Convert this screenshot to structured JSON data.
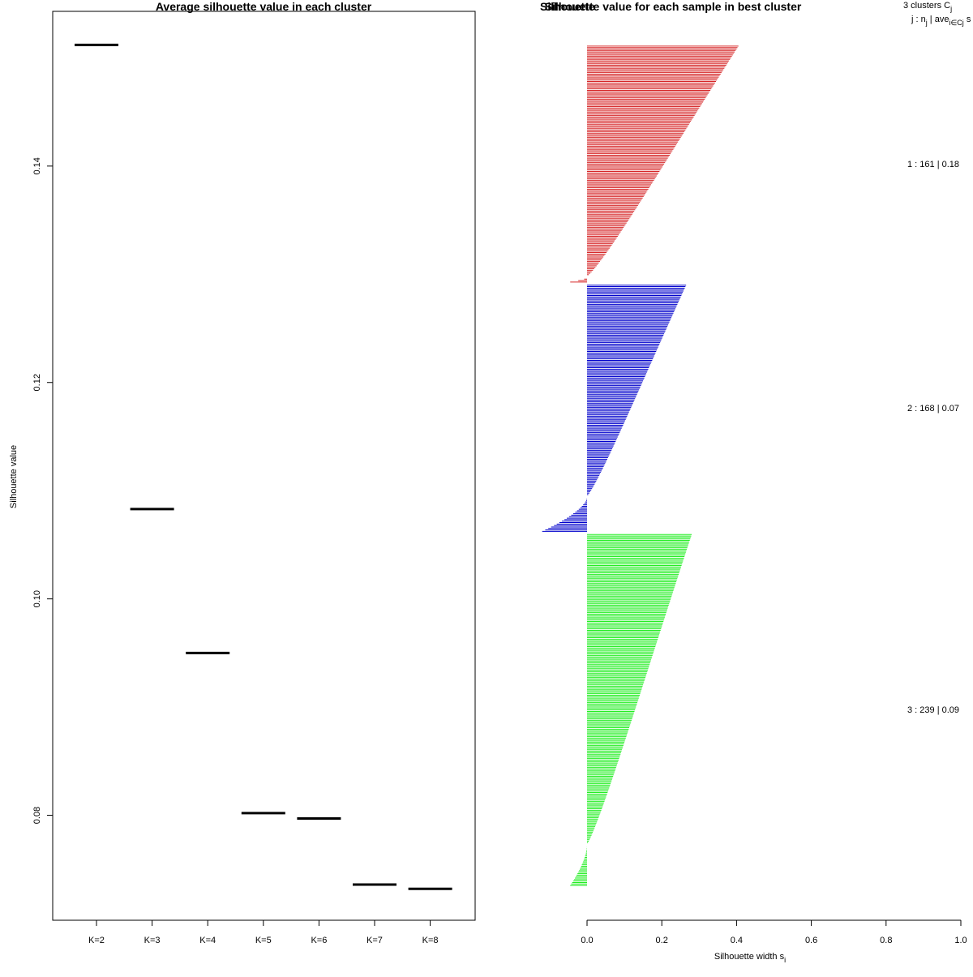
{
  "chart_data": [
    {
      "type": "line",
      "title": "Average silhouette value in each cluster",
      "xlabel": "",
      "ylabel": "Silhouette value",
      "categories": [
        "K=2",
        "K=3",
        "K=4",
        "K=5",
        "K=6",
        "K=7",
        "K=8"
      ],
      "values": [
        0.1512,
        0.1083,
        0.095,
        0.0802,
        0.0797,
        0.0736,
        0.0732
      ],
      "ylim": [
        0.0703,
        0.1543
      ],
      "yticks": [
        0.08,
        0.1,
        0.12,
        0.14
      ],
      "ytick_labels": [
        "0.08",
        "0.10",
        "0.12",
        "0.14"
      ]
    },
    {
      "type": "bar",
      "orientation": "horizontal",
      "title": "Silhouette value for each sample in best cluster",
      "overlap_label": "Silhouette",
      "xlabel": "Silhouette width s",
      "xlabel_sub": "i",
      "xlim": [
        0,
        1
      ],
      "xticks": [
        0.0,
        0.2,
        0.4,
        0.6,
        0.8,
        1.0
      ],
      "xtick_labels": [
        "0.0",
        "0.2",
        "0.4",
        "0.6",
        "0.8",
        "1.0"
      ],
      "header": {
        "line1_text": "3  clusters  C",
        "line1_sub": "j",
        "line2_a": "j :  n",
        "line2_sub1": "j",
        "line2_b": " | ave",
        "line2_sub2": "i∈Cj",
        "line2_c": "  s"
      },
      "series": [
        {
          "name": "1",
          "n": 161,
          "avg": 0.18,
          "label": "1 :   161  |  0.18",
          "color": "#d62728",
          "max": 0.405,
          "min": -0.045,
          "neg_count": 4
        },
        {
          "name": "2",
          "n": 168,
          "avg": 0.07,
          "label": "2 :   168  |  0.07",
          "color": "#0000cc",
          "max": 0.265,
          "min": -0.12,
          "neg_count": 24
        },
        {
          "name": "3",
          "n": 239,
          "avg": 0.09,
          "label": "3 :   239  |  0.09",
          "color": "#22ee22",
          "max": 0.28,
          "min": -0.045,
          "neg_count": 28
        }
      ]
    }
  ]
}
